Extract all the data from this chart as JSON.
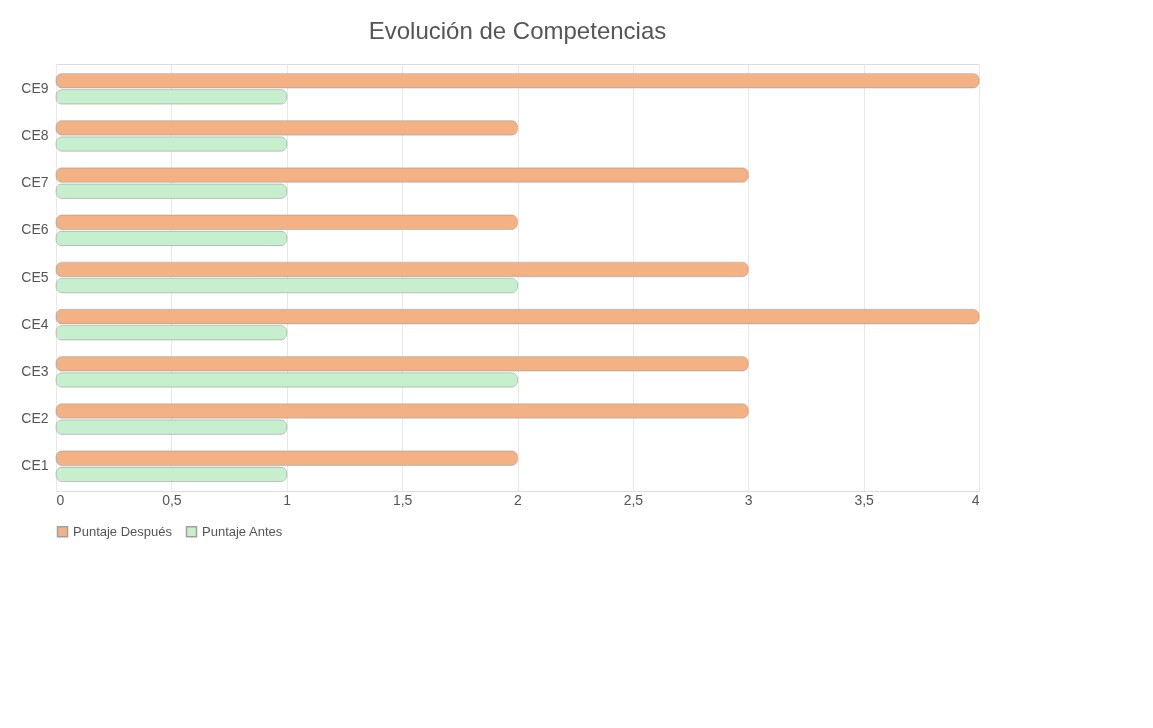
{
  "chart_data": {
    "type": "bar",
    "orientation": "horizontal",
    "title": "Evolución de Competencias",
    "categories": [
      "CE9",
      "CE8",
      "CE7",
      "CE6",
      "CE5",
      "CE4",
      "CE3",
      "CE2",
      "CE1"
    ],
    "series": [
      {
        "name": "Puntaje Después",
        "color": "#f4b183",
        "values": [
          4,
          2,
          3,
          2,
          3,
          4,
          3,
          3,
          2
        ]
      },
      {
        "name": "Puntaje Antes",
        "color": "#c6efce",
        "values": [
          1,
          1,
          1,
          1,
          2,
          1,
          2,
          1,
          1
        ]
      }
    ],
    "xlim": [
      0,
      4
    ],
    "xticks": [
      0,
      {
        "value": 0.5,
        "label": "0,5"
      },
      1,
      {
        "value": 1.5,
        "label": "1,5"
      },
      2,
      {
        "value": 2.5,
        "label": "2,5"
      },
      3,
      {
        "value": 3.5,
        "label": "3,5"
      },
      4
    ],
    "grid": "x",
    "legend": "bottom"
  }
}
